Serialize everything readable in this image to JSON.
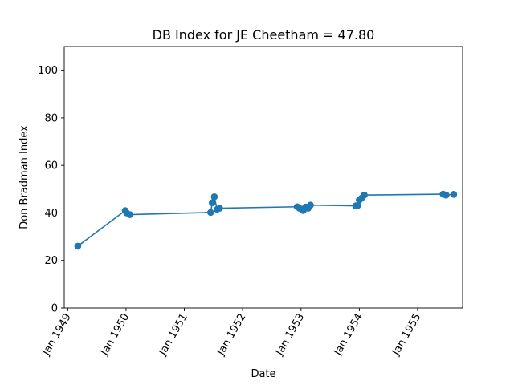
{
  "chart_data": {
    "type": "line",
    "title": "DB Index for JE Cheetham = 47.80",
    "xlabel": "Date",
    "ylabel": "Don Bradman Index",
    "ylim": [
      0,
      110
    ],
    "yticks": [
      0,
      20,
      40,
      60,
      80,
      100
    ],
    "xlim": [
      "1948-12-10",
      "1955-10-10"
    ],
    "xticks": [
      {
        "date": "1949-01-01",
        "label": "Jan 1949"
      },
      {
        "date": "1950-01-01",
        "label": "Jan 1950"
      },
      {
        "date": "1951-01-01",
        "label": "Jan 1951"
      },
      {
        "date": "1952-01-01",
        "label": "Jan 1952"
      },
      {
        "date": "1953-01-01",
        "label": "Jan 1953"
      },
      {
        "date": "1954-01-01",
        "label": "Jan 1954"
      },
      {
        "date": "1955-01-01",
        "label": "Jan 1955"
      }
    ],
    "grid": false,
    "color": "#1f77b4",
    "series": [
      {
        "marker": "circle",
        "points": [
          {
            "x": "1949-03-05",
            "y": 26.0
          },
          {
            "x": "1949-12-27",
            "y": 41.0
          },
          {
            "x": "1950-01-05",
            "y": 40.0
          },
          {
            "x": "1950-01-25",
            "y": 39.3
          },
          {
            "x": "1951-06-15",
            "y": 40.2
          },
          {
            "x": "1951-06-25",
            "y": 44.3
          },
          {
            "x": "1951-07-08",
            "y": 46.8
          },
          {
            "x": "1951-07-25",
            "y": 41.5
          },
          {
            "x": "1951-08-10",
            "y": 42.0
          },
          {
            "x": "1952-12-08",
            "y": 42.6
          },
          {
            "x": "1952-12-22",
            "y": 42.0
          },
          {
            "x": "1953-01-05",
            "y": 41.5
          },
          {
            "x": "1953-01-15",
            "y": 41.0
          },
          {
            "x": "1953-01-30",
            "y": 42.5
          },
          {
            "x": "1953-02-15",
            "y": 42.0
          },
          {
            "x": "1953-03-01",
            "y": 43.3
          },
          {
            "x": "1953-12-10",
            "y": 43.0
          },
          {
            "x": "1953-12-22",
            "y": 43.1
          },
          {
            "x": "1954-01-01",
            "y": 45.4
          },
          {
            "x": "1954-01-15",
            "y": 46.2
          },
          {
            "x": "1954-02-01",
            "y": 47.5
          },
          {
            "x": "1955-06-10",
            "y": 47.9
          },
          {
            "x": "1955-06-28",
            "y": 47.5
          },
          {
            "x": "1955-08-15",
            "y": 47.8
          }
        ]
      }
    ]
  }
}
